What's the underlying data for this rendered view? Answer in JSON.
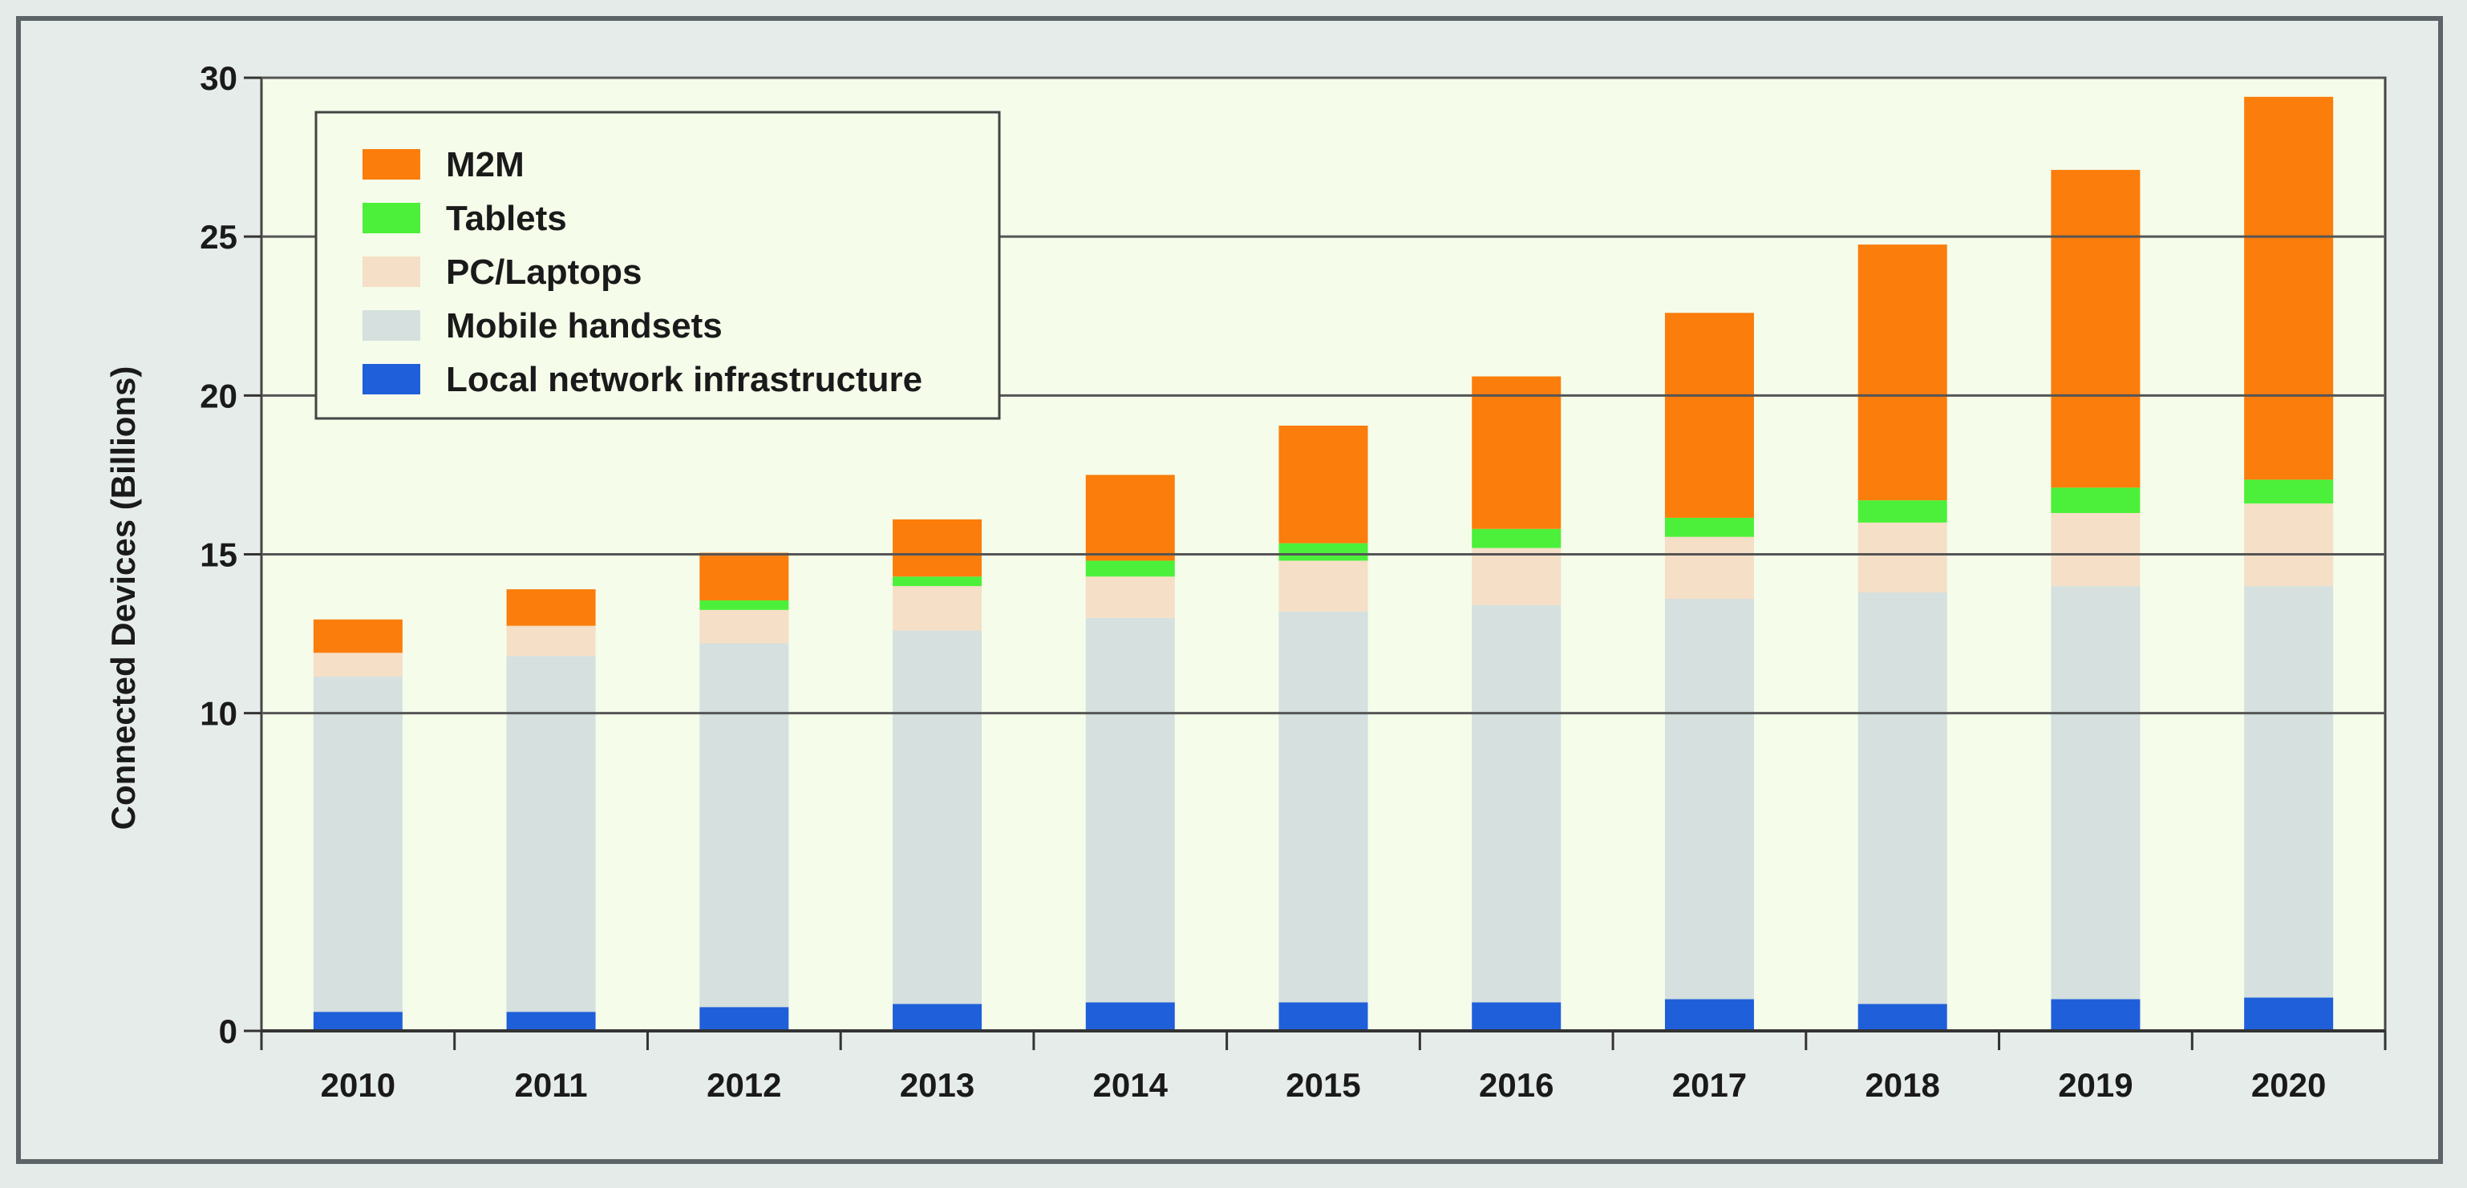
{
  "chart_data": {
    "type": "bar",
    "stacked": true,
    "title": "",
    "xlabel": "",
    "ylabel": "Connected Devices (Billions)",
    "ylim": [
      0,
      30
    ],
    "yticks": [
      "0",
      "10",
      "15",
      "20",
      "25",
      "30"
    ],
    "ytick_values": [
      0,
      10,
      15,
      20,
      25,
      30
    ],
    "grid": "horizontal",
    "legend_position": "top-left",
    "colors": {
      "plot_background": "#f5fcea",
      "frame": "#5c6468"
    },
    "categories": [
      "2010",
      "2011",
      "2012",
      "2013",
      "2014",
      "2015",
      "2016",
      "2017",
      "2018",
      "2019",
      "2020"
    ],
    "series": [
      {
        "name": "Local network infrastructure",
        "color": "#1f5fd9",
        "values": [
          0.6,
          0.6,
          0.75,
          0.85,
          0.9,
          0.9,
          0.9,
          1.0,
          0.85,
          1.0,
          1.05
        ]
      },
      {
        "name": "Mobile handsets",
        "color": "#d5e0df",
        "values": [
          10.55,
          11.2,
          11.45,
          11.75,
          12.1,
          12.3,
          12.5,
          12.6,
          12.95,
          13.0,
          12.95
        ]
      },
      {
        "name": "PC/Laptops",
        "color": "#f5dfc6",
        "values": [
          0.75,
          0.95,
          1.05,
          1.4,
          1.3,
          1.6,
          1.8,
          1.95,
          2.2,
          2.3,
          2.6
        ]
      },
      {
        "name": "Tablets",
        "color": "#4cf03a",
        "values": [
          0,
          0,
          0.3,
          0.3,
          0.5,
          0.55,
          0.6,
          0.6,
          0.7,
          0.8,
          0.75
        ]
      },
      {
        "name": "M2M",
        "color": "#fb7d0b",
        "values": [
          1.05,
          1.15,
          1.5,
          1.8,
          2.7,
          3.7,
          4.8,
          6.45,
          8.05,
          10.0,
          12.05
        ]
      }
    ],
    "legend_order": [
      "M2M",
      "Tablets",
      "PC/Laptops",
      "Mobile handsets",
      "Local network infrastructure"
    ]
  }
}
